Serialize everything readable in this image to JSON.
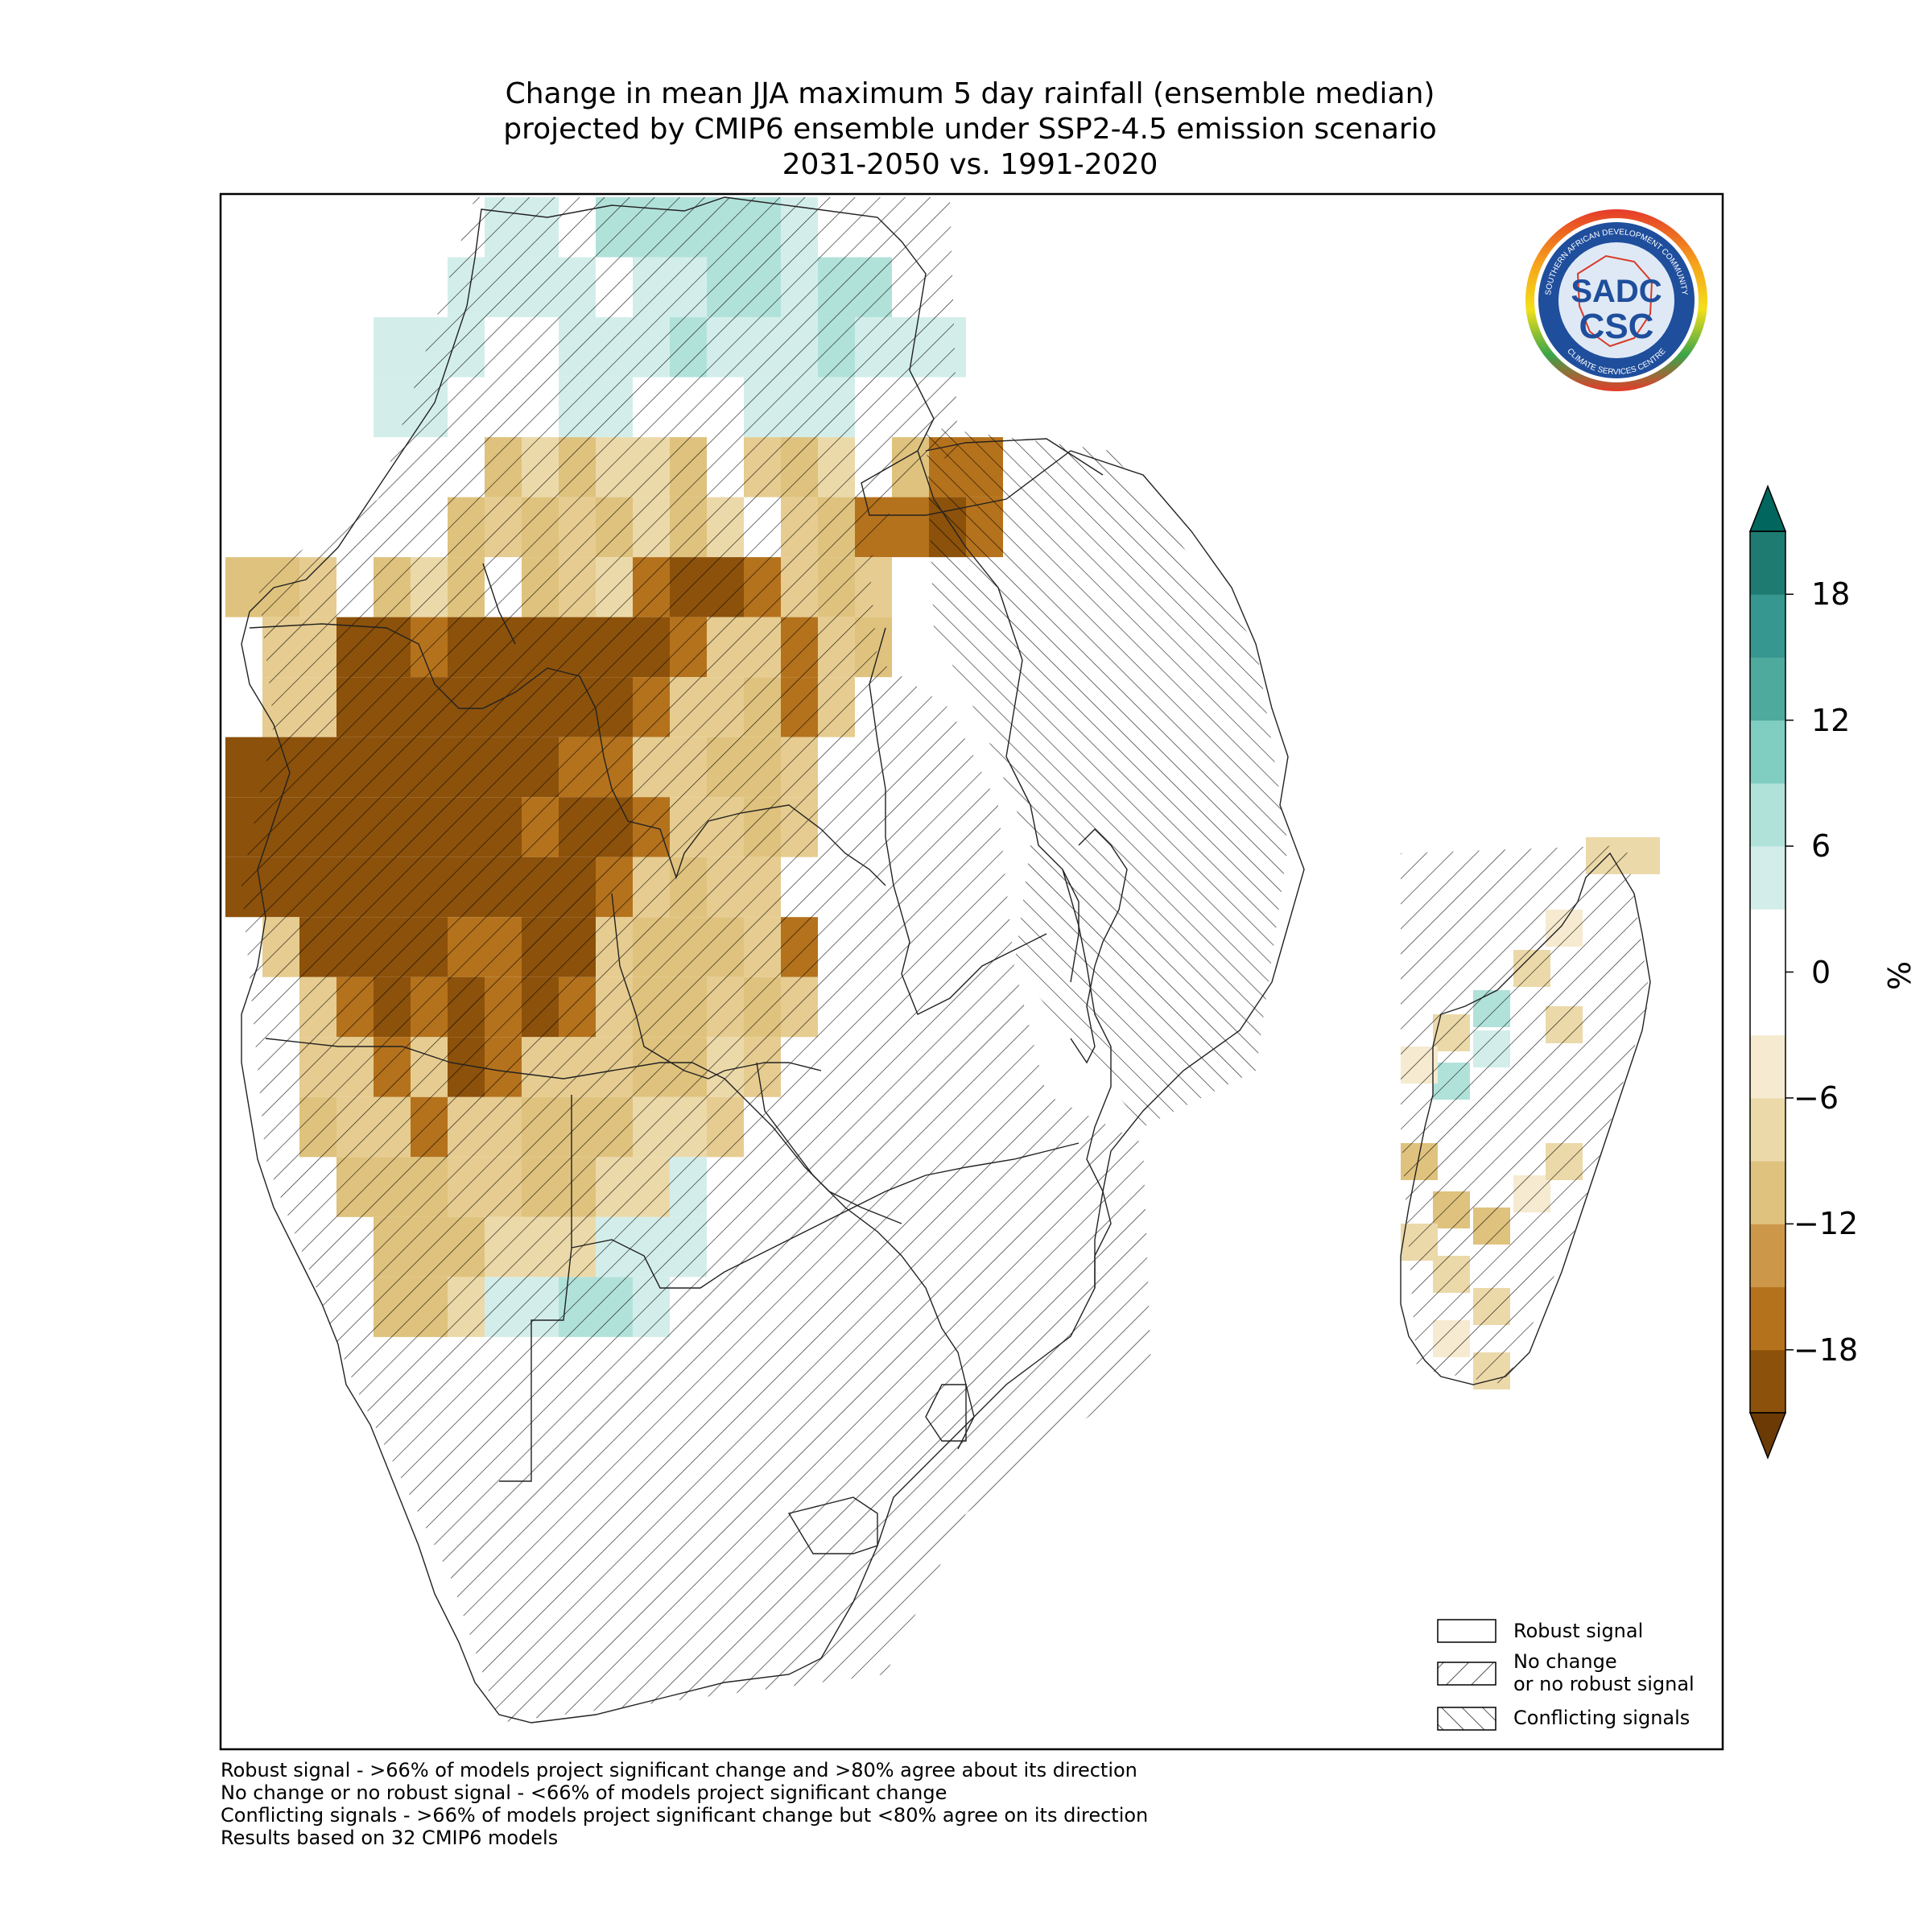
{
  "title": {
    "line1": "Change in mean JJA maximum 5 day rainfall (ensemble median)",
    "line2": "projected by CMIP6 ensemble under SSP2-4.5 emission scenario",
    "line3": "2031-2050 vs. 1991-2020"
  },
  "colorbar": {
    "unit": "%",
    "ticks": [
      "18",
      "12",
      "6",
      "0",
      "−6",
      "−12",
      "−18"
    ],
    "tick_values": [
      18,
      12,
      6,
      0,
      -6,
      -12,
      -18
    ],
    "range": [
      -21,
      21
    ],
    "colors_low_to_high": [
      "#8c510a",
      "#b5721c",
      "#cd9749",
      "#dfc27d",
      "#ecd9a9",
      "#f6ead0",
      "#ffffff",
      "#ffffff",
      "#d3eeea",
      "#b1e2da",
      "#80cdc1",
      "#4eaa9d",
      "#35978f",
      "#1d7b72"
    ]
  },
  "legend": {
    "robust": "Robust signal",
    "no_change_1": "No change",
    "no_change_2": "or no robust signal",
    "conflicting": "Conflicting signals"
  },
  "footnotes": {
    "line1": "Robust signal - >66% of models project significant change and >80% agree about its direction",
    "line2": "No change or no robust signal - <66% of models project significant change",
    "line3": "Conflicting signals - >66% of models project significant change but <80% agree on its direction",
    "line4": "Results based on 32 CMIP6 models"
  },
  "logo": {
    "top_text": "SOUTHERN AFRICAN DEVELOPMENT COMMUNITY",
    "bottom_text": "CLIMATE SERVICES CENTRE",
    "mark1": "SADC",
    "mark2": "CSC"
  },
  "map_data": {
    "type": "gridded-change-map",
    "region": "Southern Africa",
    "grid_rows_mainland": [
      "...11.222221.....",
      "..1111.1122122....",
      ".111..11121112111.",
      ".11...11...111....",
      "...DCDCCD.EDB.DFF.",
      "..DEDEDCDC.EDFFGF.",
      "DDE.DCD.DECFGGFEDE",
      "EEGGFGGGGGGFEEFED",
      "EEGGGGGGGGFEEDFE",
      "GGGGGGGGGFFEEDDE",
      "GGGGGGGGFGGFEEDE",
      "GGGGGGGGGGFEDEE",
      "EGGGGFFGGEDDDEF",
      "EFGFGFGFEDDEDE",
      "EEFEGFEEEDDCE",
      "DEEFEEDDDCCE",
      "DDDEEDDCC1",
      "DDDCCC111",
      "DDC11221"
    ]
  }
}
